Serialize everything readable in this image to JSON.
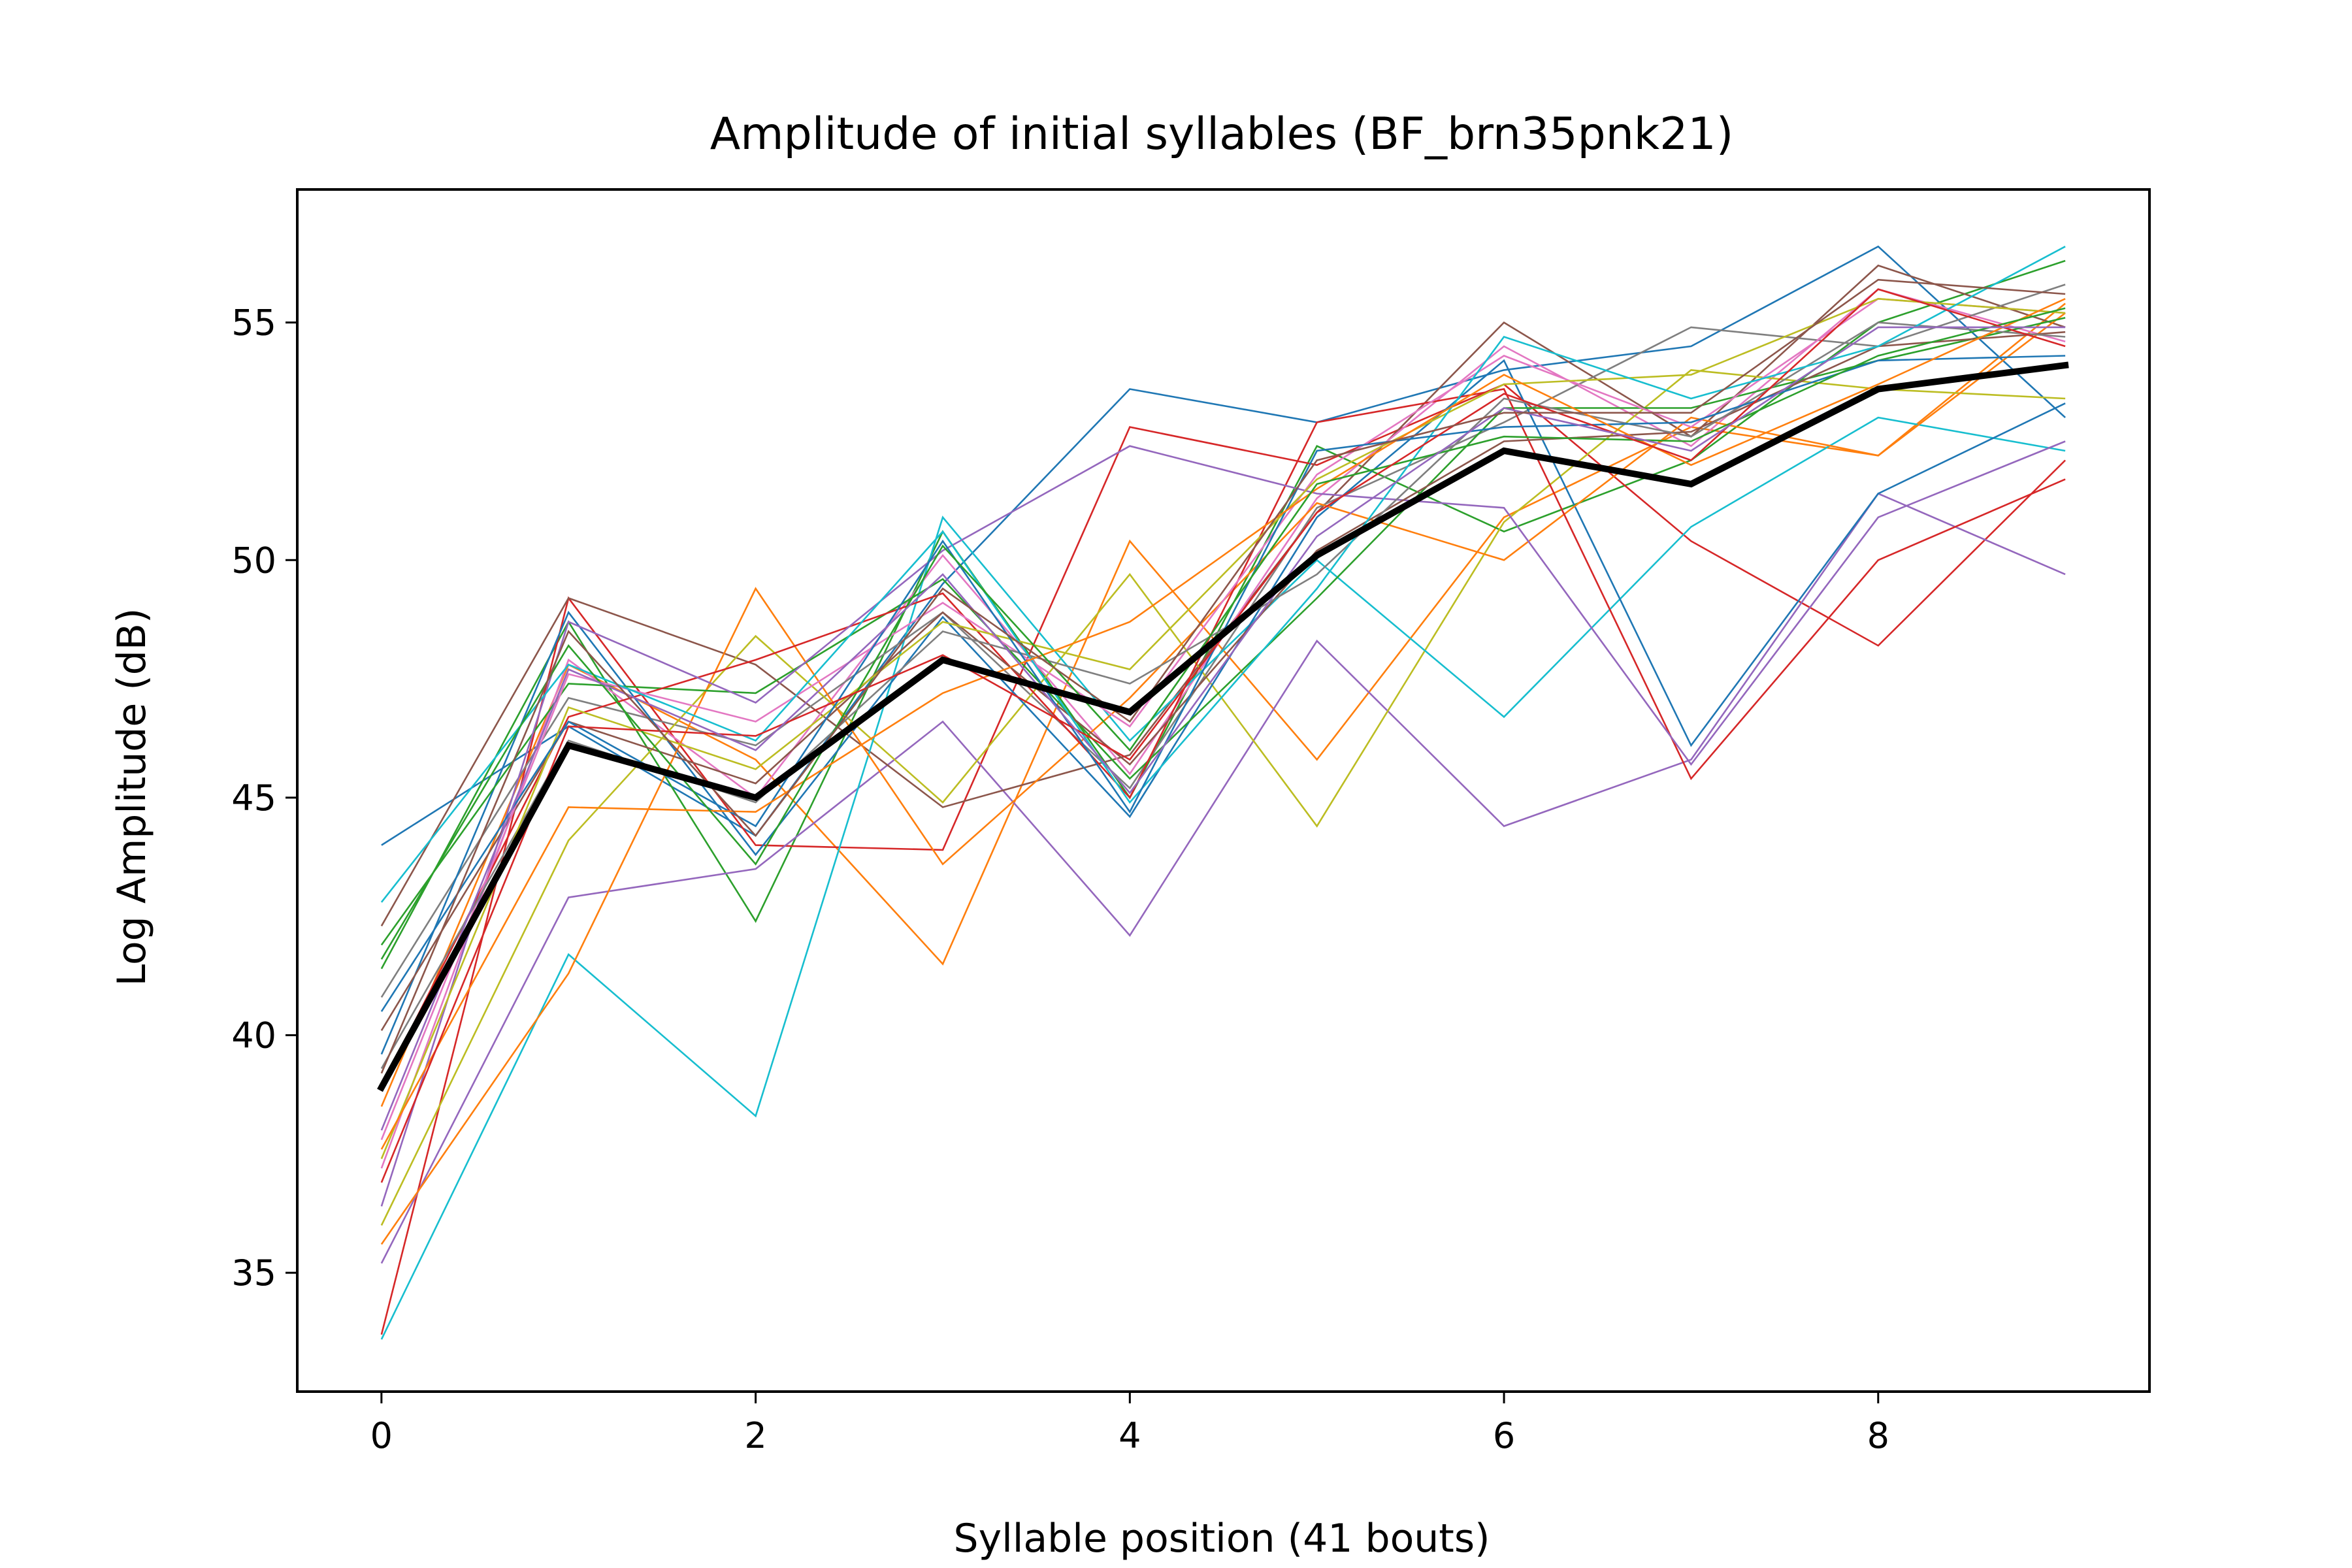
{
  "chart_data": {
    "type": "line",
    "title": "Amplitude of initial syllables (BF_brn35pnk21)",
    "xlabel": "Syllable position (41 bouts)",
    "ylabel": "Log Amplitude (dB)",
    "xlim": [
      -0.45,
      9.45
    ],
    "ylim": [
      32.5,
      57.8
    ],
    "x_ticks": [
      0,
      2,
      4,
      6,
      8
    ],
    "y_ticks": [
      35,
      40,
      45,
      50,
      55
    ],
    "x": [
      0,
      1,
      2,
      3,
      4,
      5,
      6,
      7,
      8,
      9
    ],
    "grid": false,
    "legend": "none",
    "mean_series": {
      "color": "#000000",
      "values": [
        38.9,
        46.1,
        45.0,
        47.9,
        46.8,
        50.1,
        52.3,
        51.6,
        53.6,
        54.1
      ]
    },
    "series": [
      {
        "color": "#1f77b4",
        "values": [
          44.0,
          46.5,
          44.2,
          49.5,
          53.6,
          52.9,
          54.0,
          54.5,
          56.6,
          53.0
        ]
      },
      {
        "color": "#ff7f0e",
        "values": [
          38.5,
          47.8,
          45.8,
          41.5,
          50.4,
          45.8,
          50.9,
          52.8,
          52.2,
          55.4
        ]
      },
      {
        "color": "#2ca02c",
        "values": [
          41.4,
          48.7,
          42.4,
          50.6,
          45.0,
          52.4,
          50.6,
          52.1,
          55.0,
          56.3
        ]
      },
      {
        "color": "#d62728",
        "values": [
          33.7,
          49.2,
          44.0,
          43.9,
          52.8,
          52.0,
          53.7,
          50.4,
          48.2,
          52.1
        ]
      },
      {
        "color": "#9467bd",
        "values": [
          35.2,
          42.9,
          43.5,
          46.6,
          42.1,
          48.3,
          44.4,
          45.8,
          51.4,
          49.7
        ]
      },
      {
        "color": "#8c564b",
        "values": [
          42.3,
          49.2,
          47.8,
          44.8,
          45.9,
          51.0,
          55.0,
          52.6,
          56.2,
          54.9
        ]
      },
      {
        "color": "#e377c2",
        "values": [
          37.2,
          47.9,
          45.0,
          50.1,
          45.5,
          51.3,
          54.5,
          52.4,
          55.7,
          54.6
        ]
      },
      {
        "color": "#7f7f7f",
        "values": [
          40.8,
          47.1,
          46.1,
          48.9,
          45.2,
          51.1,
          52.9,
          54.9,
          54.5,
          55.8
        ]
      },
      {
        "color": "#bcbd22",
        "values": [
          36.0,
          44.1,
          48.4,
          44.9,
          49.7,
          44.4,
          50.8,
          54.0,
          53.6,
          53.4
        ]
      },
      {
        "color": "#17becf",
        "values": [
          33.6,
          41.7,
          38.3,
          50.9,
          46.2,
          50.0,
          46.7,
          50.7,
          53.0,
          52.3
        ]
      },
      {
        "color": "#1f77b4",
        "values": [
          39.6,
          48.9,
          43.8,
          48.8,
          44.6,
          50.9,
          54.2,
          46.1,
          51.4,
          53.3
        ]
      },
      {
        "color": "#ff7f0e",
        "values": [
          35.6,
          41.3,
          49.4,
          43.6,
          47.1,
          51.2,
          50.0,
          53.0,
          52.2,
          55.2
        ]
      },
      {
        "color": "#2ca02c",
        "values": [
          41.9,
          47.4,
          47.2,
          49.6,
          45.4,
          49.2,
          53.2,
          53.2,
          54.2,
          55.1
        ]
      },
      {
        "color": "#d62728",
        "values": [
          38.9,
          46.7,
          47.9,
          49.3,
          45.0,
          52.9,
          53.6,
          45.4,
          50.0,
          51.7
        ]
      },
      {
        "color": "#9467bd",
        "values": [
          36.4,
          48.7,
          47.0,
          50.2,
          52.4,
          51.4,
          51.1,
          45.7,
          50.9,
          52.5
        ]
      },
      {
        "color": "#8c564b",
        "values": [
          40.1,
          46.6,
          45.3,
          48.9,
          45.7,
          50.2,
          52.5,
          52.7,
          54.5,
          54.8
        ]
      },
      {
        "color": "#e377c2",
        "values": [
          37.8,
          47.6,
          46.6,
          49.1,
          46.5,
          51.8,
          54.3,
          52.8,
          55.5,
          55.2
        ]
      },
      {
        "color": "#7f7f7f",
        "values": [
          39.3,
          46.2,
          44.9,
          48.5,
          47.4,
          49.7,
          53.4,
          52.6,
          55.0,
          54.7
        ]
      },
      {
        "color": "#bcbd22",
        "values": [
          37.4,
          46.9,
          45.6,
          48.7,
          47.7,
          51.7,
          53.7,
          53.9,
          55.5,
          55.2
        ]
      },
      {
        "color": "#17becf",
        "values": [
          42.8,
          47.8,
          46.2,
          50.6,
          44.9,
          49.4,
          54.7,
          53.4,
          54.5,
          56.6
        ]
      },
      {
        "color": "#1f77b4",
        "values": [
          40.5,
          46.6,
          44.4,
          50.4,
          44.7,
          52.3,
          52.8,
          52.9,
          54.2,
          54.3
        ]
      },
      {
        "color": "#ff7f0e",
        "values": [
          37.6,
          44.8,
          44.7,
          47.2,
          48.7,
          51.5,
          53.9,
          52.0,
          53.7,
          55.5
        ]
      },
      {
        "color": "#2ca02c",
        "values": [
          41.6,
          48.2,
          43.6,
          50.3,
          46.0,
          51.6,
          52.6,
          52.5,
          54.3,
          55.3
        ]
      },
      {
        "color": "#d62728",
        "values": [
          36.9,
          46.5,
          46.3,
          48.0,
          45.8,
          51.0,
          53.5,
          52.1,
          55.7,
          54.5
        ]
      },
      {
        "color": "#9467bd",
        "values": [
          38.0,
          47.7,
          46.0,
          49.7,
          45.1,
          50.5,
          53.2,
          52.3,
          54.9,
          54.9
        ]
      },
      {
        "color": "#8c564b",
        "values": [
          39.2,
          48.5,
          44.2,
          49.4,
          46.6,
          52.1,
          53.1,
          53.1,
          55.9,
          55.6
        ]
      }
    ]
  }
}
